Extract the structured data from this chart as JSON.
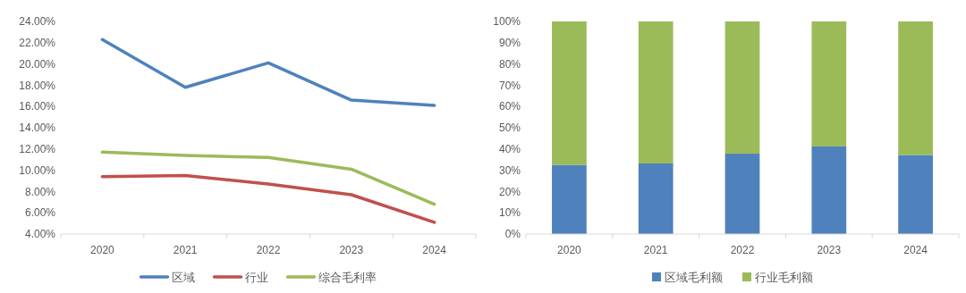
{
  "chart_data": [
    {
      "type": "line",
      "categories": [
        "2020",
        "2021",
        "2022",
        "2023",
        "2024"
      ],
      "series": [
        {
          "name": "区域",
          "color": "#4f81bd",
          "values": [
            22.3,
            17.8,
            20.1,
            16.6,
            16.1
          ]
        },
        {
          "name": "行业",
          "color": "#c0504d",
          "values": [
            9.4,
            9.5,
            8.7,
            7.7,
            5.1
          ]
        },
        {
          "name": "综合毛利率",
          "color": "#9bbb59",
          "values": [
            11.7,
            11.4,
            11.2,
            10.1,
            6.8
          ]
        }
      ],
      "ylim": [
        4,
        24
      ],
      "yticks": [
        {
          "value": 4,
          "label": "4.00%"
        },
        {
          "value": 6,
          "label": "6.00%"
        },
        {
          "value": 8,
          "label": "8.00%"
        },
        {
          "value": 10,
          "label": "10.00%"
        },
        {
          "value": 12,
          "label": "12.00%"
        },
        {
          "value": 14,
          "label": "14.00%"
        },
        {
          "value": 16,
          "label": "16.00%"
        },
        {
          "value": 18,
          "label": "18.00%"
        },
        {
          "value": 20,
          "label": "20.00%"
        },
        {
          "value": 22,
          "label": "22.00%"
        },
        {
          "value": 24,
          "label": "24.00%"
        }
      ],
      "legend": "bottom",
      "marker": "none"
    },
    {
      "type": "bar",
      "stacked": true,
      "categories": [
        "2020",
        "2021",
        "2022",
        "2023",
        "2024"
      ],
      "series": [
        {
          "name": "区域毛利额",
          "color": "#4f81bd",
          "values": [
            32.5,
            33.2,
            37.8,
            41.2,
            37.2
          ]
        },
        {
          "name": "行业毛利额",
          "color": "#9bbb59",
          "values": [
            67.5,
            66.8,
            62.2,
            58.8,
            62.8
          ]
        }
      ],
      "ylim": [
        0,
        100
      ],
      "yticks": [
        {
          "value": 0,
          "label": "0%"
        },
        {
          "value": 10,
          "label": "10%"
        },
        {
          "value": 20,
          "label": "20%"
        },
        {
          "value": 30,
          "label": "30%"
        },
        {
          "value": 40,
          "label": "40%"
        },
        {
          "value": 50,
          "label": "50%"
        },
        {
          "value": 60,
          "label": "60%"
        },
        {
          "value": 70,
          "label": "70%"
        },
        {
          "value": 80,
          "label": "80%"
        },
        {
          "value": 90,
          "label": "90%"
        },
        {
          "value": 100,
          "label": "100%"
        }
      ],
      "legend": "bottom"
    }
  ]
}
